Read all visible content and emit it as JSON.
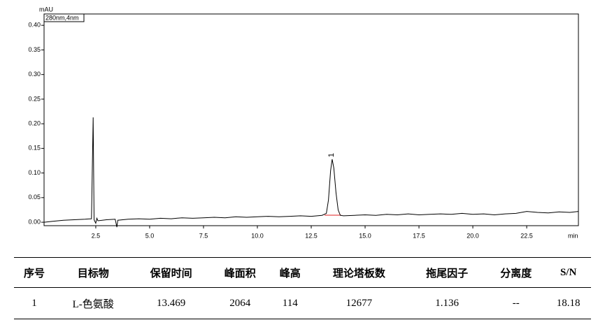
{
  "chart_data": {
    "type": "line",
    "y_label": "mAU",
    "x_label": "min",
    "x": [
      0.1,
      0.5,
      1.0,
      1.5,
      2.0,
      2.3,
      2.38,
      2.42,
      2.5,
      2.55,
      2.6,
      3.0,
      3.4,
      3.48,
      3.52,
      4.0,
      4.5,
      5.0,
      5.5,
      6.0,
      6.5,
      7.0,
      7.5,
      8.0,
      8.5,
      9.0,
      9.5,
      10.0,
      10.5,
      11.0,
      11.5,
      12.0,
      12.5,
      13.0,
      13.2,
      13.3,
      13.4,
      13.47,
      13.55,
      13.65,
      13.75,
      13.85,
      14.0,
      14.5,
      15.0,
      15.5,
      16.0,
      16.5,
      17.0,
      17.5,
      18.0,
      18.5,
      19.0,
      19.5,
      20.0,
      20.5,
      21.0,
      21.5,
      22.0,
      22.5,
      23.0,
      23.5,
      24.0,
      24.5,
      24.9
    ],
    "series": [
      {
        "name": "280nm,4nm",
        "color": "#000000",
        "values": [
          0.0,
          0.002,
          0.004,
          0.005,
          0.006,
          0.007,
          0.213,
          0.005,
          -0.002,
          0.008,
          0.003,
          0.005,
          0.006,
          -0.01,
          0.004,
          0.006,
          0.007,
          0.006,
          0.008,
          0.007,
          0.009,
          0.008,
          0.009,
          0.01,
          0.009,
          0.011,
          0.01,
          0.011,
          0.012,
          0.011,
          0.012,
          0.013,
          0.012,
          0.014,
          0.018,
          0.045,
          0.105,
          0.128,
          0.11,
          0.06,
          0.025,
          0.014,
          0.013,
          0.014,
          0.015,
          0.014,
          0.016,
          0.015,
          0.017,
          0.015,
          0.016,
          0.017,
          0.016,
          0.018,
          0.016,
          0.017,
          0.015,
          0.017,
          0.018,
          0.022,
          0.02,
          0.019,
          0.021,
          0.02,
          0.022
        ]
      }
    ],
    "peak_label": "1",
    "xlim": [
      0.1,
      24.9
    ],
    "ylim": [
      -0.007,
      0.423
    ],
    "xticks": [
      2.5,
      {
        "value": 5,
        "label": "5.0"
      },
      7.5,
      {
        "value": 10,
        "label": "10.0"
      },
      12.5,
      {
        "value": 15,
        "label": "15.0"
      },
      17.5,
      {
        "value": 20,
        "label": "20.0"
      },
      22.5
    ],
    "yticks": [
      {
        "value": 0,
        "label": "0.00"
      },
      {
        "value": 0.05,
        "label": "0.05"
      },
      {
        "value": 0.1,
        "label": "0.10"
      },
      {
        "value": 0.15,
        "label": "0.15"
      },
      {
        "value": 0.2,
        "label": "0.20"
      },
      {
        "value": 0.25,
        "label": "0.25"
      },
      {
        "value": 0.3,
        "label": "0.30"
      },
      {
        "value": 0.35,
        "label": "0.35"
      },
      {
        "value": 0.4,
        "label": "0.40"
      }
    ]
  },
  "table": {
    "header": [
      "序号",
      "目标物",
      "保留时间",
      "峰面积",
      "峰高",
      "理论塔板数",
      "拖尾因子",
      "分离度",
      "S/N"
    ],
    "rows": [
      [
        "1",
        "L-色氨酸",
        "13.469",
        "2064",
        "114",
        "12677",
        "1.136",
        "--",
        "18.18"
      ]
    ]
  }
}
